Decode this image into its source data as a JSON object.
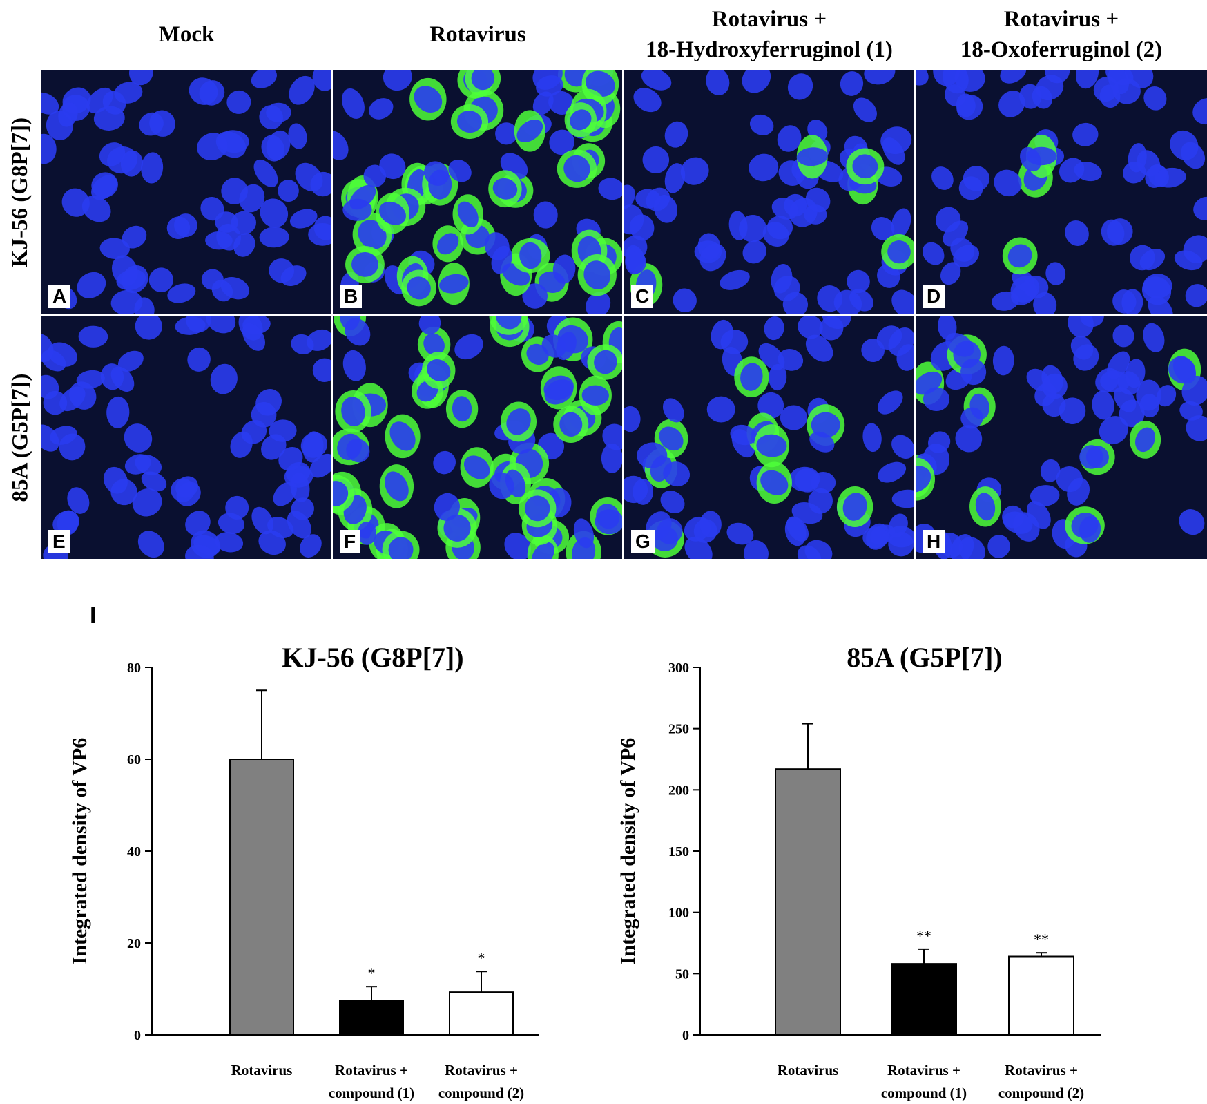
{
  "figure": {
    "columns": [
      {
        "line1": "Mock",
        "line2": ""
      },
      {
        "line1": "Rotavirus",
        "line2": ""
      },
      {
        "line1": "Rotavirus +",
        "line2": "18-Hydroxyferruginol (1)"
      },
      {
        "line1": "Rotavirus +",
        "line2": "18-Oxoferruginol (2)"
      }
    ],
    "rows": [
      "KJ-56 (G8P[7])",
      "85A (G5P[7])"
    ],
    "panel_letters": [
      "A",
      "B",
      "C",
      "D",
      "E",
      "F",
      "G",
      "H"
    ],
    "panel_infection_level": [
      0,
      0.55,
      0.06,
      0.08,
      0,
      0.75,
      0.14,
      0.14
    ],
    "colors": {
      "nucleus": "#2a3cf0",
      "vp6_stain": "#4dff3a",
      "background": "#0a1030"
    },
    "section_label": "I"
  },
  "chart_data": [
    {
      "type": "bar",
      "title": "KJ-56 (G8P[7])",
      "ylabel": "Integrated density of VP6",
      "ylim": [
        0,
        80
      ],
      "yticks": [
        0,
        20,
        40,
        60,
        80
      ],
      "categories": [
        {
          "line1": "Rotavirus",
          "line2": ""
        },
        {
          "line1": "Rotavirus +",
          "line2": "compound (1)"
        },
        {
          "line1": "Rotavirus +",
          "line2": "compound (2)"
        }
      ],
      "values": [
        60,
        7.5,
        9.3
      ],
      "errors": [
        15,
        3,
        4.5
      ],
      "significance": [
        "",
        "*",
        "*"
      ],
      "bar_colors": [
        "#808080",
        "#000000",
        "#ffffff"
      ]
    },
    {
      "type": "bar",
      "title": "85A (G5P[7])",
      "ylabel": "Integrated density of VP6",
      "ylim": [
        0,
        300
      ],
      "yticks": [
        0,
        50,
        100,
        150,
        200,
        250,
        300
      ],
      "categories": [
        {
          "line1": "Rotavirus",
          "line2": ""
        },
        {
          "line1": "Rotavirus +",
          "line2": "compound (1)"
        },
        {
          "line1": "Rotavirus +",
          "line2": "compound (2)"
        }
      ],
      "values": [
        217,
        58,
        64
      ],
      "errors": [
        37,
        12,
        3
      ],
      "significance": [
        "",
        "**",
        "**"
      ],
      "bar_colors": [
        "#808080",
        "#000000",
        "#ffffff"
      ]
    }
  ]
}
